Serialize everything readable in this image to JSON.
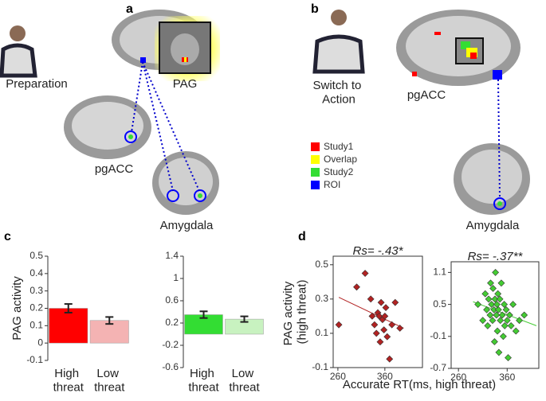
{
  "figure": {
    "panel_labels": [
      "a",
      "b",
      "c",
      "d"
    ],
    "a": {
      "phase": "Preparation",
      "regions": [
        "PAG",
        "pgACC",
        "Amygdala"
      ]
    },
    "b": {
      "phase": "Switch to Action",
      "regions": [
        "pgACC",
        "Amygdala"
      ]
    },
    "legend": [
      {
        "name": "Study1",
        "color": "#ff0000"
      },
      {
        "name": "Overlap",
        "color": "#ffff00"
      },
      {
        "name": "Study2",
        "color": "#33dd33"
      },
      {
        "name": "ROI",
        "color": "#0000ff"
      }
    ],
    "d_xlabel": "Accurate RT(ms, high threat)"
  },
  "chart_data": [
    {
      "type": "bar",
      "ylabel": "PAG activity",
      "categories": [
        "High threat",
        "Low threat"
      ],
      "values": [
        0.2,
        0.13
      ],
      "errors": [
        0.025,
        0.02
      ],
      "colors": [
        "#ff0000",
        "#f4b3b3"
      ],
      "ylim": [
        -0.1,
        0.5
      ],
      "yticks": [
        -0.1,
        0,
        0.1,
        0.2,
        0.3,
        0.4,
        0.5
      ]
    },
    {
      "type": "bar",
      "categories": [
        "High threat",
        "Low threat"
      ],
      "values": [
        0.35,
        0.27
      ],
      "errors": [
        0.06,
        0.05
      ],
      "colors": [
        "#33dd33",
        "#c8f2c0"
      ],
      "ylim": [
        -0.6,
        1.4
      ],
      "yticks": [
        -0.6,
        -0.2,
        0.2,
        0.6,
        1,
        1.4
      ]
    },
    {
      "type": "scatter",
      "ylabel": "PAG activity (high threat)",
      "annotation": "Rs= -.43*",
      "color": "#b22222",
      "x": [
        262,
        300,
        318,
        330,
        333,
        338,
        342,
        345,
        348,
        350,
        352,
        355,
        358,
        360,
        362,
        365,
        370,
        375,
        382,
        392
      ],
      "values": [
        0.15,
        0.37,
        0.45,
        0.3,
        0.2,
        0.15,
        0.1,
        0.22,
        0.2,
        0.05,
        0.28,
        0.18,
        0.12,
        0.2,
        0.25,
        0.08,
        -0.05,
        0.15,
        0.28,
        0.13
      ],
      "trendline": {
        "x": [
          262,
          400
        ],
        "y": [
          0.31,
          0.13
        ]
      },
      "xlim": [
        250,
        440
      ],
      "xticks": [
        260,
        360
      ],
      "ylim": [
        -0.1,
        0.55
      ],
      "yticks": [
        -0.1,
        0.1,
        0.3,
        0.5
      ]
    },
    {
      "type": "scatter",
      "annotation": "Rs= -.37**",
      "color": "#44cc33",
      "x": [
        300,
        310,
        315,
        318,
        320,
        322,
        325,
        326,
        328,
        330,
        331,
        333,
        334,
        335,
        336,
        338,
        339,
        340,
        341,
        342,
        343,
        345,
        346,
        348,
        350,
        352,
        354,
        355,
        358,
        360,
        362,
        365,
        368,
        372,
        378,
        385,
        395
      ],
      "values": [
        0.5,
        0.2,
        0.7,
        0.4,
        0.1,
        0.6,
        0.3,
        0.9,
        0.5,
        0.2,
        0.8,
        0.4,
        -0.2,
        0.6,
        1.1,
        0.3,
        0.5,
        0.0,
        0.7,
        0.4,
        -0.4,
        0.6,
        0.2,
        0.9,
        0.3,
        -0.1,
        0.5,
        0.1,
        0.4,
        0.2,
        -0.5,
        0.3,
        0.1,
        0.5,
        0.0,
        0.2,
        0.3
      ],
      "trendline": {
        "x": [
          290,
          420
        ],
        "y": [
          0.55,
          0.1
        ]
      },
      "xlim": [
        245,
        425
      ],
      "xticks": [
        260,
        360
      ],
      "ylim": [
        -0.7,
        1.3
      ],
      "yticks": [
        -0.7,
        -0.1,
        0.5,
        1.1
      ]
    }
  ]
}
